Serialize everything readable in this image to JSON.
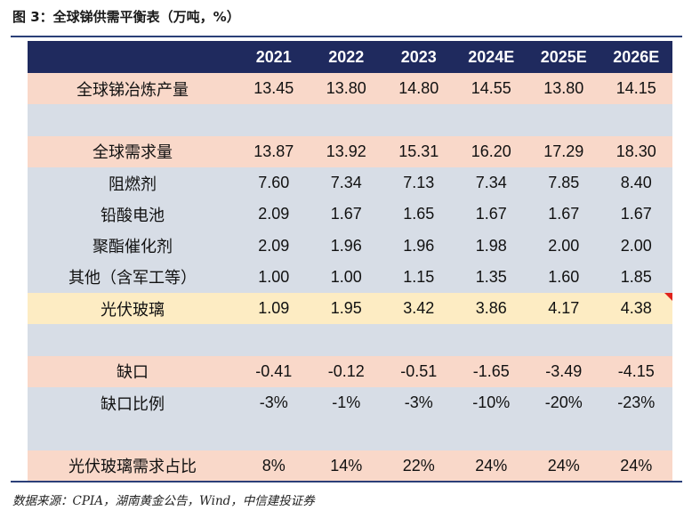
{
  "title": "图 3：全球锑供需平衡表（万吨，%）",
  "source": "数据来源：CPIA，湖南黄金公告，Wind，中信建投证券",
  "headers": [
    "",
    "2021",
    "2022",
    "2023",
    "2024E",
    "2025E",
    "2026E"
  ],
  "rows": [
    {
      "label": "全球锑冶炼产量",
      "values": [
        "13.45",
        "13.80",
        "14.80",
        "14.55",
        "13.80",
        "14.15"
      ]
    },
    {
      "label": "",
      "values": [
        "",
        "",
        "",
        "",
        "",
        ""
      ]
    },
    {
      "label": "全球需求量",
      "values": [
        "13.87",
        "13.92",
        "15.31",
        "16.20",
        "17.29",
        "18.30"
      ]
    },
    {
      "label": "阻燃剂",
      "values": [
        "7.60",
        "7.34",
        "7.13",
        "7.34",
        "7.85",
        "8.40"
      ]
    },
    {
      "label": "铅酸电池",
      "values": [
        "2.09",
        "1.67",
        "1.65",
        "1.67",
        "1.67",
        "1.67"
      ]
    },
    {
      "label": "聚酯催化剂",
      "values": [
        "2.09",
        "1.96",
        "1.96",
        "1.98",
        "2.00",
        "2.00"
      ]
    },
    {
      "label": "其他（含军工等）",
      "values": [
        "1.00",
        "1.00",
        "1.15",
        "1.35",
        "1.60",
        "1.85"
      ]
    },
    {
      "label": "光伏玻璃",
      "values": [
        "1.09",
        "1.95",
        "3.42",
        "3.86",
        "4.17",
        "4.38"
      ]
    },
    {
      "label": "",
      "values": [
        "",
        "",
        "",
        "",
        "",
        ""
      ]
    },
    {
      "label": "缺口",
      "values": [
        "-0.41",
        "-0.12",
        "-0.51",
        "-1.65",
        "-3.49",
        "-4.15"
      ]
    },
    {
      "label": "缺口比例",
      "values": [
        "-3%",
        "-1%",
        "-3%",
        "-10%",
        "-20%",
        "-23%"
      ]
    },
    {
      "label": "",
      "values": [
        "",
        "",
        "",
        "",
        "",
        ""
      ]
    },
    {
      "label": "光伏玻璃需求占比",
      "values": [
        "8%",
        "14%",
        "22%",
        "24%",
        "24%",
        "24%"
      ]
    }
  ],
  "colors": {
    "header_bg": "#1f2a5e",
    "pink": "#f9d8c9",
    "gray": "#d7dde6",
    "yellow": "#fdecc3",
    "rule": "#2b3f78"
  }
}
